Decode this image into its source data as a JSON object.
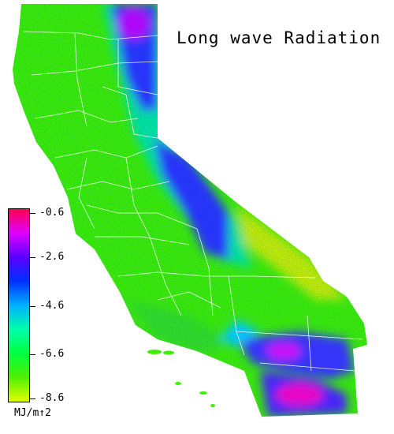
{
  "title": "Long wave Radiation",
  "legend": {
    "ticks": [
      "-0.6",
      "-2.6",
      "-4.6",
      "-6.6",
      "-8.6"
    ],
    "unit": "MJ/m↑2",
    "colors": [
      "#ff0050",
      "#e000ff",
      "#5a00ff",
      "#0030ff",
      "#00b0ff",
      "#00ffaa",
      "#00ff40",
      "#50f000",
      "#e0ff00"
    ]
  }
}
